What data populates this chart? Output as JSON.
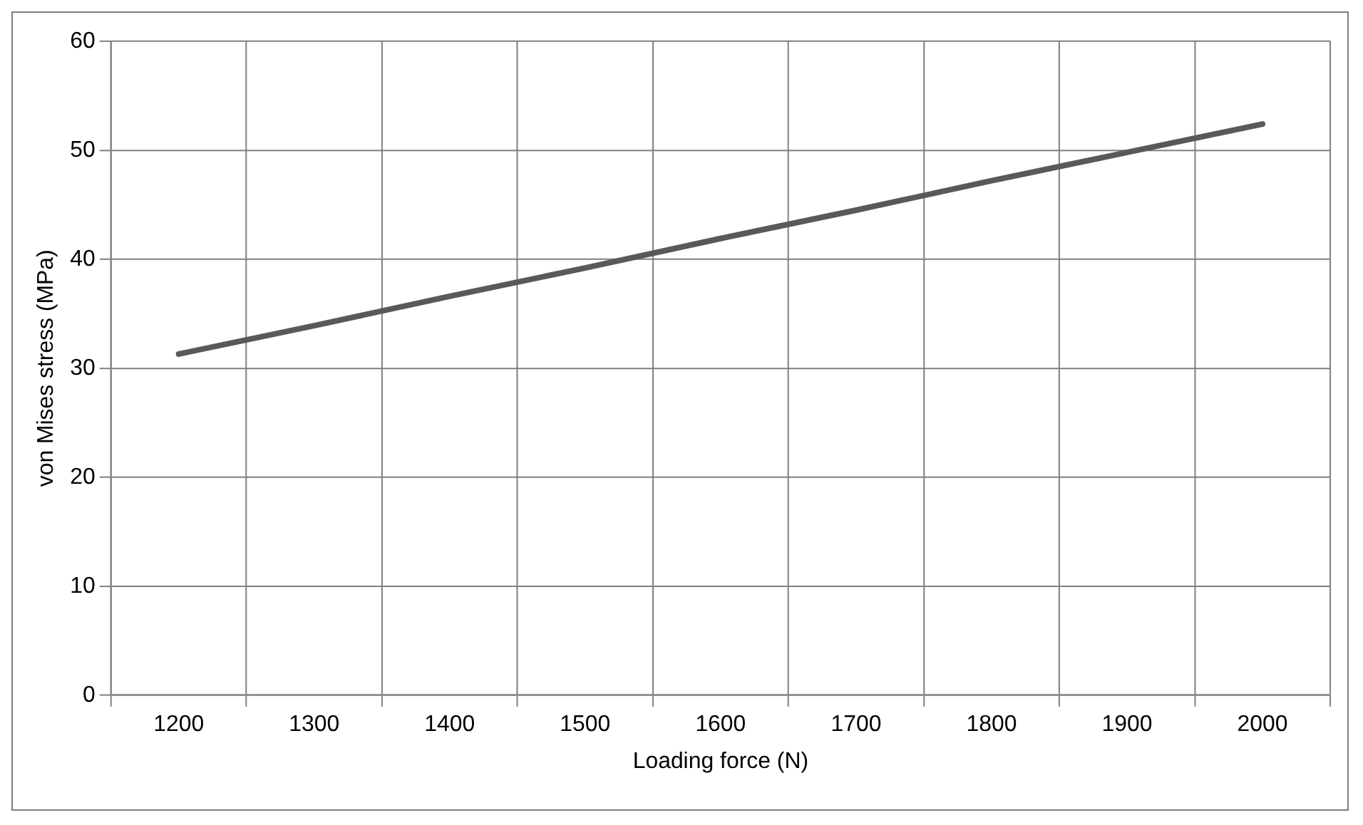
{
  "chart_data": {
    "type": "line",
    "xlabel": "Loading force (N)",
    "ylabel": "von Mises stress (MPa)",
    "categories": [
      "1200",
      "1300",
      "1400",
      "1500",
      "1600",
      "1700",
      "1800",
      "1900",
      "2000"
    ],
    "series": [
      {
        "color": "#595959",
        "values": [
          31.3,
          33.9,
          36.6,
          39.2,
          41.9,
          44.5,
          47.2,
          49.8,
          52.4
        ]
      }
    ],
    "ylim": [
      0,
      60
    ],
    "yticks": [
      0,
      10,
      20,
      30,
      40,
      50,
      60
    ],
    "grid": true,
    "legend": false,
    "marker": "none",
    "line_style": "solid"
  }
}
